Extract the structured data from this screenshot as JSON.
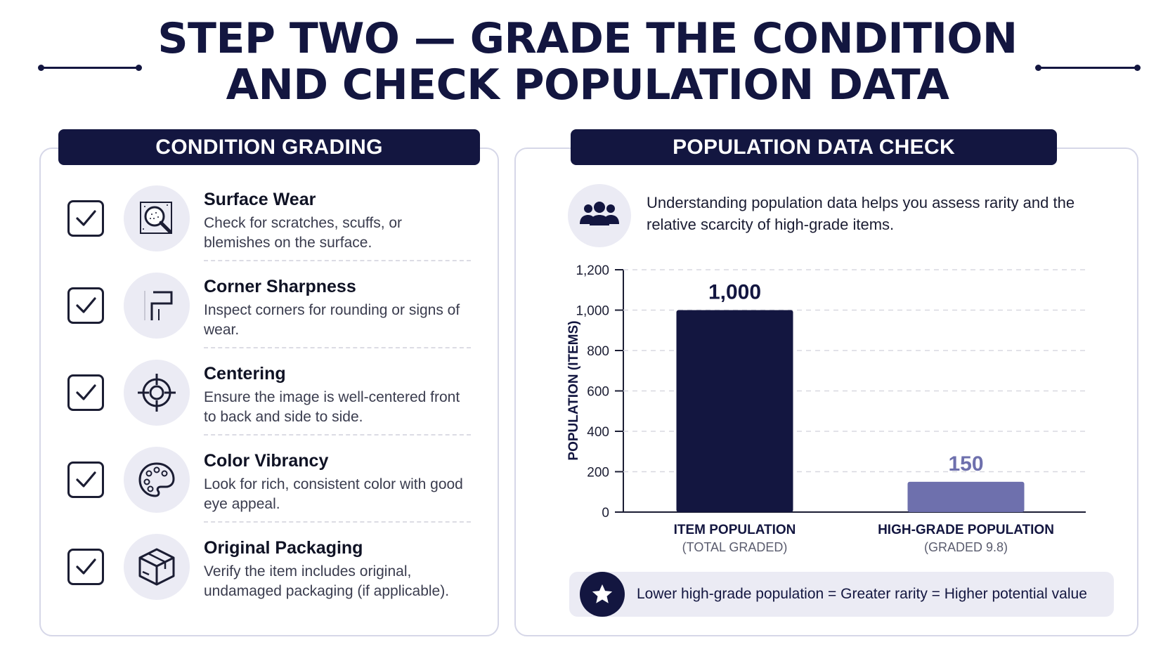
{
  "title": {
    "line1": "STEP TWO — GRADE THE CONDITION",
    "line2": "AND CHECK POPULATION DATA"
  },
  "condition_grading": {
    "header": "CONDITION GRADING",
    "items": [
      {
        "title": "Surface Wear",
        "desc": "Check for scratches, scuffs, or blemishes on the surface.",
        "icon": "magnifier-icon"
      },
      {
        "title": "Corner Sharpness",
        "desc": "Inspect corners for rounding or signs of wear.",
        "icon": "corner-icon"
      },
      {
        "title": "Centering",
        "desc": "Ensure the image is well-centered front to back and side to side.",
        "icon": "crosshair-icon"
      },
      {
        "title": "Color Vibrancy",
        "desc": "Look for rich, consistent color with good eye appeal.",
        "icon": "palette-icon"
      },
      {
        "title": "Original Packaging",
        "desc": "Verify the item includes original, undamaged packaging (if applicable).",
        "icon": "box-icon"
      }
    ]
  },
  "population": {
    "header": "POPULATION DATA CHECK",
    "intro": "Understanding population data helps you assess rarity and the relative scarcity of high-grade items.",
    "footer": "Lower high-grade population = Greater rarity = Higher potential value"
  },
  "chart_data": {
    "type": "bar",
    "categories": [
      "ITEM POPULATION",
      "HIGH-GRADE POPULATION"
    ],
    "subcategories": [
      "(TOTAL GRADED)",
      "(GRADED 9.8)"
    ],
    "values": [
      1000,
      150
    ],
    "data_labels": [
      "1,000",
      "150"
    ],
    "ylabel": "POPULATION (ITEMS)",
    "ylim": [
      0,
      1200
    ],
    "yticks": [
      0,
      200,
      400,
      600,
      800,
      1000,
      1200
    ],
    "ytick_labels": [
      "0",
      "200",
      "400",
      "600",
      "800",
      "1,000",
      "1,200"
    ],
    "bar_colors": [
      "#131640",
      "#6e70ad"
    ],
    "grid": true
  },
  "colors": {
    "navy": "#131640",
    "accent": "#6e70ad",
    "soft_bg": "#ebebf4"
  }
}
